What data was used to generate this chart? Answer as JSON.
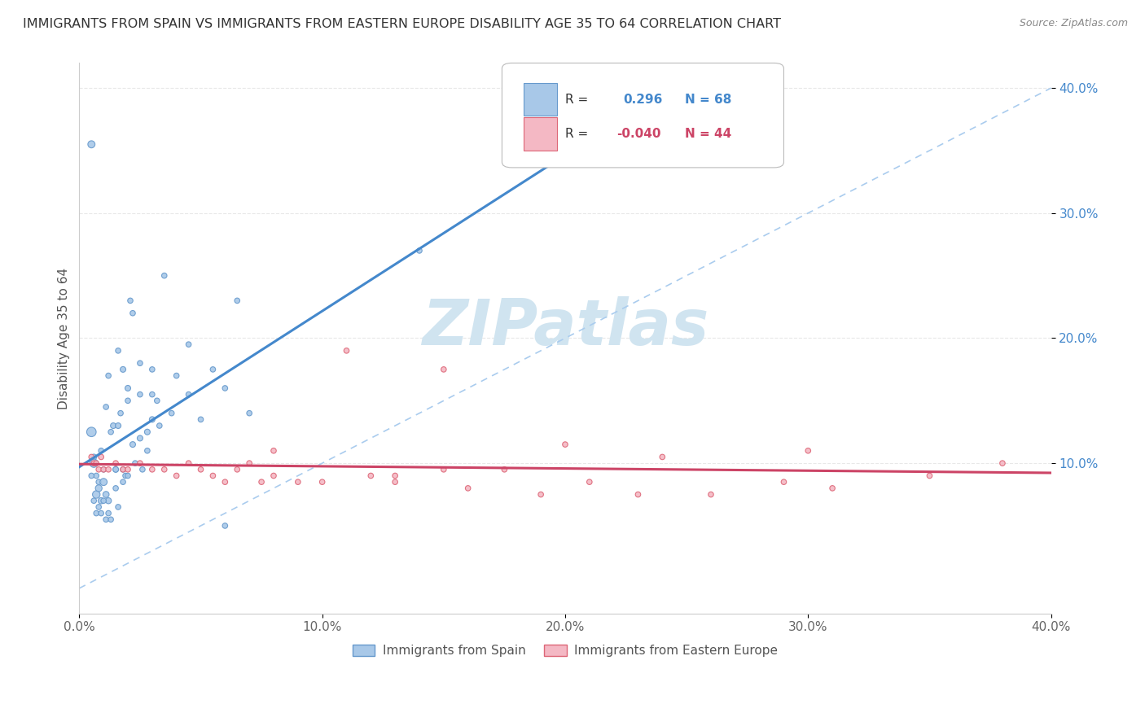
{
  "title": "IMMIGRANTS FROM SPAIN VS IMMIGRANTS FROM EASTERN EUROPE DISABILITY AGE 35 TO 64 CORRELATION CHART",
  "source": "Source: ZipAtlas.com",
  "ylabel": "Disability Age 35 to 64",
  "xlim": [
    0.0,
    0.4
  ],
  "ylim": [
    -0.02,
    0.42
  ],
  "xtick_labels": [
    "0.0%",
    "10.0%",
    "20.0%",
    "30.0%",
    "40.0%"
  ],
  "xtick_vals": [
    0.0,
    0.1,
    0.2,
    0.3,
    0.4
  ],
  "ytick_labels": [
    "10.0%",
    "20.0%",
    "30.0%",
    "40.0%"
  ],
  "ytick_vals": [
    0.1,
    0.2,
    0.3,
    0.4
  ],
  "color_spain_fill": "#A8C8E8",
  "color_spain_edge": "#6699CC",
  "color_eastern_fill": "#F4B8C4",
  "color_eastern_edge": "#DD6677",
  "color_line_spain": "#4488CC",
  "color_line_eastern": "#CC4466",
  "color_dashed": "#AACCEE",
  "color_ytick": "#4488CC",
  "color_grid": "#E8E8E8",
  "watermark_color": "#D0E4F0",
  "background_color": "#FFFFFF",
  "spain_x": [
    0.005,
    0.006,
    0.007,
    0.008,
    0.009,
    0.01,
    0.011,
    0.012,
    0.013,
    0.015,
    0.016,
    0.017,
    0.018,
    0.019,
    0.02,
    0.021,
    0.022,
    0.023,
    0.025,
    0.026,
    0.028,
    0.03,
    0.032,
    0.033,
    0.035,
    0.038,
    0.04,
    0.045,
    0.05,
    0.055,
    0.06,
    0.065,
    0.07,
    0.005,
    0.006,
    0.007,
    0.008,
    0.009,
    0.01,
    0.011,
    0.012,
    0.014,
    0.015,
    0.016,
    0.018,
    0.02,
    0.022,
    0.025,
    0.028,
    0.03,
    0.005,
    0.006,
    0.007,
    0.008,
    0.009,
    0.01,
    0.011,
    0.012,
    0.013,
    0.015,
    0.016,
    0.018,
    0.02,
    0.025,
    0.03,
    0.045,
    0.06,
    0.14
  ],
  "spain_y": [
    0.355,
    0.105,
    0.09,
    0.085,
    0.11,
    0.095,
    0.145,
    0.17,
    0.125,
    0.095,
    0.19,
    0.14,
    0.095,
    0.09,
    0.15,
    0.23,
    0.22,
    0.1,
    0.18,
    0.095,
    0.11,
    0.175,
    0.15,
    0.13,
    0.25,
    0.14,
    0.17,
    0.195,
    0.135,
    0.175,
    0.16,
    0.23,
    0.14,
    0.125,
    0.1,
    0.075,
    0.08,
    0.07,
    0.085,
    0.075,
    0.07,
    0.13,
    0.095,
    0.13,
    0.175,
    0.16,
    0.115,
    0.12,
    0.125,
    0.135,
    0.09,
    0.07,
    0.06,
    0.065,
    0.06,
    0.07,
    0.055,
    0.06,
    0.055,
    0.08,
    0.065,
    0.085,
    0.09,
    0.155,
    0.155,
    0.155,
    0.05,
    0.27
  ],
  "spain_size": [
    40,
    25,
    22,
    22,
    22,
    22,
    22,
    22,
    22,
    22,
    22,
    22,
    22,
    22,
    22,
    22,
    22,
    22,
    22,
    22,
    22,
    22,
    22,
    22,
    22,
    22,
    22,
    22,
    22,
    22,
    22,
    22,
    22,
    70,
    55,
    45,
    35,
    30,
    40,
    30,
    28,
    25,
    25,
    25,
    25,
    25,
    25,
    25,
    25,
    25,
    22,
    22,
    22,
    22,
    22,
    22,
    22,
    22,
    22,
    22,
    22,
    22,
    22,
    22,
    22,
    22,
    22,
    22
  ],
  "eastern_x": [
    0.005,
    0.006,
    0.007,
    0.008,
    0.009,
    0.01,
    0.012,
    0.015,
    0.018,
    0.02,
    0.025,
    0.03,
    0.035,
    0.04,
    0.045,
    0.05,
    0.055,
    0.06,
    0.065,
    0.07,
    0.075,
    0.08,
    0.09,
    0.1,
    0.11,
    0.12,
    0.13,
    0.15,
    0.16,
    0.175,
    0.19,
    0.21,
    0.23,
    0.26,
    0.29,
    0.31,
    0.35,
    0.38,
    0.15,
    0.2,
    0.24,
    0.3,
    0.13,
    0.08
  ],
  "eastern_y": [
    0.105,
    0.1,
    0.1,
    0.095,
    0.105,
    0.095,
    0.095,
    0.1,
    0.095,
    0.095,
    0.1,
    0.095,
    0.095,
    0.09,
    0.1,
    0.095,
    0.09,
    0.085,
    0.095,
    0.1,
    0.085,
    0.09,
    0.085,
    0.085,
    0.19,
    0.09,
    0.085,
    0.095,
    0.08,
    0.095,
    0.075,
    0.085,
    0.075,
    0.075,
    0.085,
    0.08,
    0.09,
    0.1,
    0.175,
    0.115,
    0.105,
    0.11,
    0.09,
    0.11
  ],
  "eastern_size": [
    22,
    22,
    22,
    22,
    22,
    22,
    22,
    22,
    22,
    22,
    22,
    22,
    22,
    22,
    22,
    22,
    22,
    22,
    22,
    22,
    22,
    22,
    22,
    22,
    22,
    22,
    22,
    22,
    22,
    22,
    22,
    22,
    22,
    22,
    22,
    22,
    22,
    22,
    22,
    22,
    22,
    22,
    22,
    22
  ]
}
